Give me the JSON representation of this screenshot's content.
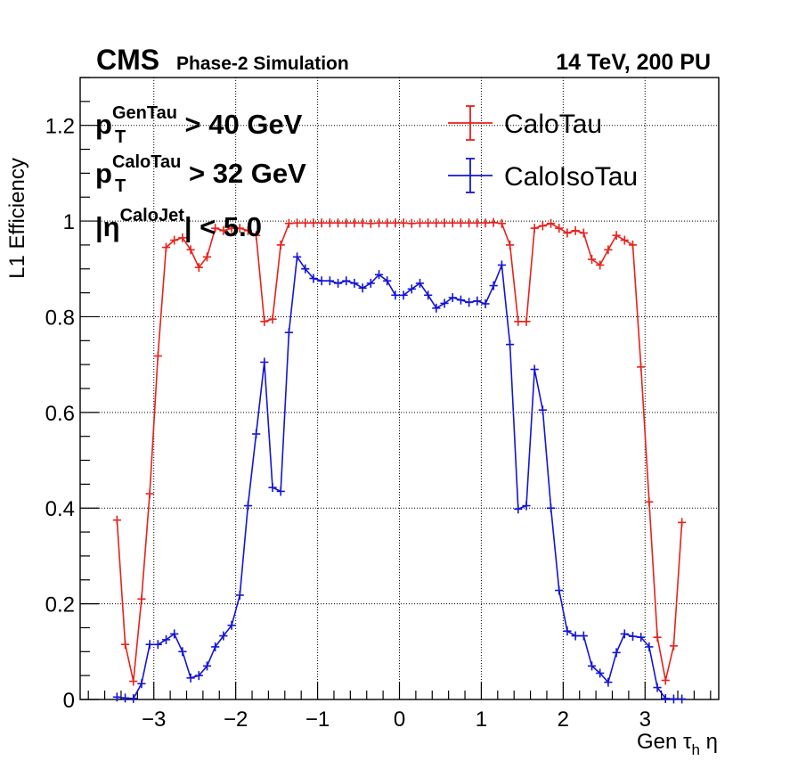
{
  "header": {
    "experiment": "CMS",
    "status": "Phase-2 Simulation",
    "energy": "14 TeV, 200 PU"
  },
  "cuts": [
    {
      "base": "p",
      "sup": "GenTau",
      "sub": "T",
      "rest": " > 40 GeV"
    },
    {
      "base": "p",
      "sup": "CaloTau",
      "sub": "T",
      "rest": " > 32 GeV"
    },
    {
      "base": "|η",
      "sup": "CaloJet",
      "sub": "",
      "rest": "| < 5.0"
    }
  ],
  "chart_data": {
    "type": "line",
    "xlabel_parts": {
      "base": "Gen τ",
      "sub": "h",
      "rest": " η"
    },
    "ylabel": "L1 Efficiency",
    "xlim": [
      -3.9,
      3.9
    ],
    "ylim": [
      0,
      1.3
    ],
    "xticks": [
      -3,
      -2,
      -1,
      0,
      1,
      2,
      3
    ],
    "xtick_labels": [
      "−3",
      "−2",
      "−1",
      "0",
      "1",
      "2",
      "3"
    ],
    "yticks": [
      0,
      0.2,
      0.4,
      0.6,
      0.8,
      1,
      1.2
    ],
    "ytick_labels": [
      "0",
      "0.2",
      "0.4",
      "0.6",
      "0.8",
      "1",
      "1.2"
    ],
    "grid": true,
    "legend_position": "top-right",
    "x": [
      -3.45,
      -3.35,
      -3.25,
      -3.15,
      -3.05,
      -2.95,
      -2.85,
      -2.75,
      -2.65,
      -2.55,
      -2.45,
      -2.35,
      -2.25,
      -2.15,
      -2.05,
      -1.95,
      -1.85,
      -1.75,
      -1.65,
      -1.55,
      -1.45,
      -1.35,
      -1.25,
      -1.15,
      -1.05,
      -0.95,
      -0.85,
      -0.75,
      -0.65,
      -0.55,
      -0.45,
      -0.35,
      -0.25,
      -0.15,
      -0.05,
      0.05,
      0.15,
      0.25,
      0.35,
      0.45,
      0.55,
      0.65,
      0.75,
      0.85,
      0.95,
      1.05,
      1.15,
      1.25,
      1.35,
      1.45,
      1.55,
      1.65,
      1.75,
      1.85,
      1.95,
      2.05,
      2.15,
      2.25,
      2.35,
      2.45,
      2.55,
      2.65,
      2.75,
      2.85,
      2.95,
      3.05,
      3.15,
      3.25,
      3.35,
      3.45
    ],
    "series": [
      {
        "name": "CaloTau",
        "color": "#e8211b",
        "values": [
          0.375,
          0.115,
          0.038,
          0.21,
          0.43,
          0.718,
          0.945,
          0.96,
          0.965,
          0.94,
          0.903,
          0.925,
          0.985,
          0.98,
          0.985,
          0.985,
          0.98,
          0.97,
          0.79,
          0.795,
          0.95,
          0.995,
          0.996,
          0.996,
          0.996,
          0.996,
          0.996,
          0.996,
          0.996,
          0.996,
          0.996,
          0.995,
          0.996,
          0.996,
          0.996,
          0.996,
          0.995,
          0.996,
          0.996,
          0.996,
          0.996,
          0.996,
          0.996,
          0.996,
          0.996,
          0.996,
          0.997,
          0.995,
          0.95,
          0.79,
          0.79,
          0.985,
          0.99,
          0.995,
          0.985,
          0.975,
          0.98,
          0.975,
          0.92,
          0.908,
          0.94,
          0.97,
          0.96,
          0.95,
          0.695,
          0.413,
          0.13,
          0.04,
          0.112,
          0.37
        ]
      },
      {
        "name": "CaloIsoTau",
        "color": "#1414d6",
        "values": [
          0.005,
          0.003,
          0.002,
          0.033,
          0.115,
          0.115,
          0.125,
          0.137,
          0.1,
          0.045,
          0.05,
          0.07,
          0.11,
          0.133,
          0.155,
          0.218,
          0.405,
          0.555,
          0.705,
          0.443,
          0.435,
          0.767,
          0.925,
          0.9,
          0.88,
          0.875,
          0.875,
          0.87,
          0.875,
          0.87,
          0.86,
          0.87,
          0.888,
          0.875,
          0.845,
          0.845,
          0.858,
          0.87,
          0.845,
          0.818,
          0.828,
          0.84,
          0.835,
          0.83,
          0.833,
          0.827,
          0.865,
          0.908,
          0.742,
          0.398,
          0.405,
          0.69,
          0.605,
          0.4,
          0.228,
          0.143,
          0.133,
          0.133,
          0.07,
          0.055,
          0.036,
          0.098,
          0.137,
          0.132,
          0.13,
          0.11,
          0.025,
          0.002,
          0.001,
          0.001
        ]
      }
    ]
  }
}
